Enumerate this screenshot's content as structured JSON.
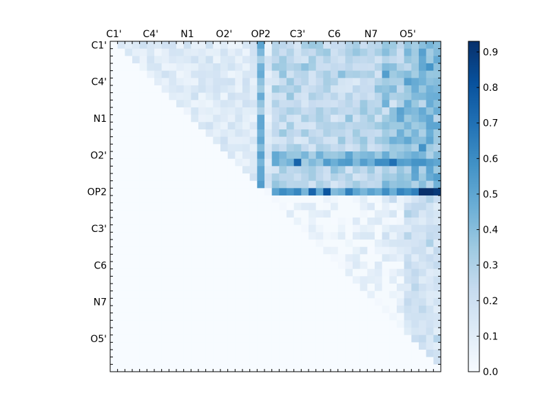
{
  "chart_data": {
    "type": "heatmap",
    "title": "",
    "xlabel": "",
    "ylabel": "",
    "grid": false,
    "rows": 45,
    "cols": 45,
    "matrix": "upper-triangular",
    "colormap": "Blues",
    "value_range": [
      0,
      0.93
    ],
    "x_tick_labels": [
      {
        "index": 0,
        "label": "C1'"
      },
      {
        "index": 5,
        "label": "C4'"
      },
      {
        "index": 10,
        "label": "N1"
      },
      {
        "index": 15,
        "label": "O2'"
      },
      {
        "index": 20,
        "label": "OP2"
      },
      {
        "index": 25,
        "label": "C3'"
      },
      {
        "index": 30,
        "label": "C6"
      },
      {
        "index": 35,
        "label": "N7"
      },
      {
        "index": 40,
        "label": "O5'"
      }
    ],
    "y_tick_labels": [
      {
        "index": 0,
        "label": "C1'"
      },
      {
        "index": 5,
        "label": "C4'"
      },
      {
        "index": 10,
        "label": "N1"
      },
      {
        "index": 15,
        "label": "O2'"
      },
      {
        "index": 20,
        "label": "OP2"
      },
      {
        "index": 25,
        "label": "C3'"
      },
      {
        "index": 30,
        "label": "C6"
      },
      {
        "index": 35,
        "label": "N7"
      },
      {
        "index": 40,
        "label": "O5'"
      }
    ],
    "colorbar": {
      "ticks": [
        0.0,
        0.1,
        0.2,
        0.3,
        0.4,
        0.5,
        0.6,
        0.7,
        0.8,
        0.9
      ],
      "tick_labels": [
        "0.0",
        "0.1",
        "0.2",
        "0.3",
        "0.4",
        "0.5",
        "0.6",
        "0.7",
        "0.8",
        "0.9"
      ]
    },
    "highlight_rows": [
      {
        "row": 15,
        "value": 0.5
      },
      {
        "row": 16,
        "value": 0.55
      },
      {
        "row": 20,
        "value": 0.68
      }
    ],
    "highlight_cols": [
      {
        "col": 20,
        "value": 0.55
      },
      {
        "col": 40,
        "value": 0.35
      }
    ],
    "peak_cells": [
      {
        "row": 20,
        "col": 42,
        "value": 0.93
      },
      {
        "row": 20,
        "col": 43,
        "value": 0.93
      },
      {
        "row": 20,
        "col": 44,
        "value": 0.9
      },
      {
        "row": 16,
        "col": 25,
        "value": 0.75
      },
      {
        "row": 16,
        "col": 38,
        "value": 0.7
      },
      {
        "row": 20,
        "col": 29,
        "value": 0.8
      }
    ]
  }
}
